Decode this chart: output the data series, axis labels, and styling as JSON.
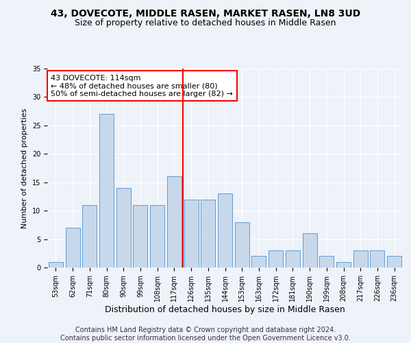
{
  "title": "43, DOVECOTE, MIDDLE RASEN, MARKET RASEN, LN8 3UD",
  "subtitle": "Size of property relative to detached houses in Middle Rasen",
  "xlabel": "Distribution of detached houses by size in Middle Rasen",
  "ylabel": "Number of detached properties",
  "footer_line1": "Contains HM Land Registry data © Crown copyright and database right 2024.",
  "footer_line2": "Contains public sector information licensed under the Open Government Licence v3.0.",
  "categories": [
    "53sqm",
    "62sqm",
    "71sqm",
    "80sqm",
    "90sqm",
    "99sqm",
    "108sqm",
    "117sqm",
    "126sqm",
    "135sqm",
    "144sqm",
    "153sqm",
    "163sqm",
    "172sqm",
    "181sqm",
    "190sqm",
    "199sqm",
    "208sqm",
    "217sqm",
    "226sqm",
    "236sqm"
  ],
  "values": [
    1,
    7,
    11,
    27,
    14,
    11,
    11,
    16,
    12,
    12,
    13,
    8,
    2,
    3,
    3,
    6,
    2,
    1,
    3,
    3,
    2
  ],
  "bar_color": "#c8d8eb",
  "bar_edgecolor": "#5b9bd5",
  "red_line_x": 7,
  "annotation_title": "43 DOVECOTE: 114sqm",
  "annotation_line2": "← 48% of detached houses are smaller (80)",
  "annotation_line3": "50% of semi-detached houses are larger (82) →",
  "ylim": [
    0,
    35
  ],
  "yticks": [
    0,
    5,
    10,
    15,
    20,
    25,
    30,
    35
  ],
  "background_color": "#eef2f9",
  "grid_color": "#ffffff",
  "title_fontsize": 10,
  "subtitle_fontsize": 9,
  "xlabel_fontsize": 9,
  "ylabel_fontsize": 8,
  "tick_fontsize": 7,
  "footer_fontsize": 7,
  "annotation_fontsize": 8
}
